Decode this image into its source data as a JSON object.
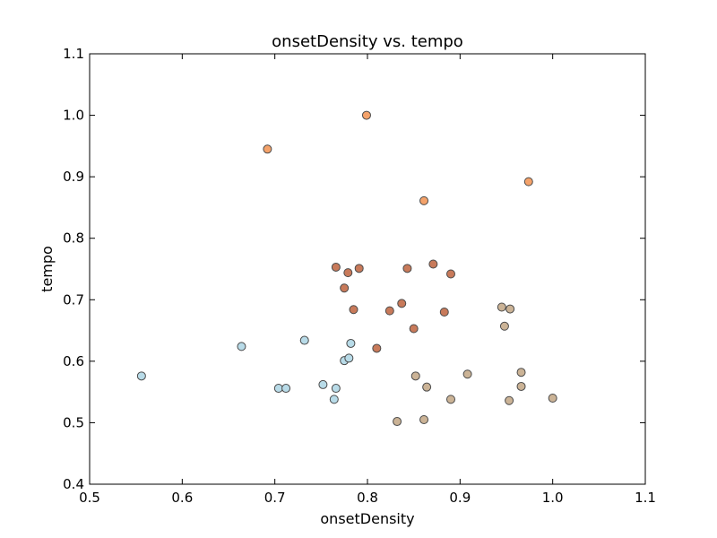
{
  "chart_data": {
    "type": "scatter",
    "title": "onsetDensity vs. tempo",
    "xlabel": "onsetDensity",
    "ylabel": "tempo",
    "xlim": [
      0.5,
      1.1
    ],
    "ylim": [
      0.4,
      1.1
    ],
    "xticks": [
      "0.5",
      "0.6",
      "0.7",
      "0.8",
      "0.9",
      "1.0",
      "1.1"
    ],
    "yticks": [
      "0.4",
      "0.5",
      "0.6",
      "0.7",
      "0.8",
      "0.9",
      "1.0",
      "1.1"
    ],
    "grid": false,
    "series": [
      {
        "color": "#b8dbe8",
        "points": [
          {
            "x": 0.556,
            "y": 0.576
          },
          {
            "x": 0.664,
            "y": 0.624
          },
          {
            "x": 0.704,
            "y": 0.556
          },
          {
            "x": 0.712,
            "y": 0.556
          },
          {
            "x": 0.732,
            "y": 0.634
          },
          {
            "x": 0.752,
            "y": 0.562
          },
          {
            "x": 0.764,
            "y": 0.538
          },
          {
            "x": 0.766,
            "y": 0.556
          },
          {
            "x": 0.775,
            "y": 0.601
          },
          {
            "x": 0.78,
            "y": 0.605
          },
          {
            "x": 0.782,
            "y": 0.629
          }
        ]
      },
      {
        "color": "#c87a5a",
        "points": [
          {
            "x": 0.766,
            "y": 0.753
          },
          {
            "x": 0.775,
            "y": 0.719
          },
          {
            "x": 0.779,
            "y": 0.744
          },
          {
            "x": 0.785,
            "y": 0.684
          },
          {
            "x": 0.791,
            "y": 0.751
          },
          {
            "x": 0.81,
            "y": 0.621
          },
          {
            "x": 0.824,
            "y": 0.682
          },
          {
            "x": 0.837,
            "y": 0.694
          },
          {
            "x": 0.843,
            "y": 0.751
          },
          {
            "x": 0.85,
            "y": 0.653
          },
          {
            "x": 0.871,
            "y": 0.758
          },
          {
            "x": 0.883,
            "y": 0.68
          },
          {
            "x": 0.89,
            "y": 0.742
          }
        ]
      },
      {
        "color": "#cbb396",
        "points": [
          {
            "x": 0.832,
            "y": 0.502
          },
          {
            "x": 0.852,
            "y": 0.576
          },
          {
            "x": 0.861,
            "y": 0.505
          },
          {
            "x": 0.864,
            "y": 0.558
          },
          {
            "x": 0.89,
            "y": 0.538
          },
          {
            "x": 0.908,
            "y": 0.579
          },
          {
            "x": 0.945,
            "y": 0.688
          },
          {
            "x": 0.948,
            "y": 0.657
          },
          {
            "x": 0.953,
            "y": 0.536
          },
          {
            "x": 0.954,
            "y": 0.685
          },
          {
            "x": 0.966,
            "y": 0.582
          },
          {
            "x": 0.966,
            "y": 0.559
          },
          {
            "x": 1.0,
            "y": 0.54
          }
        ]
      },
      {
        "color": "#f4a26a",
        "points": [
          {
            "x": 0.692,
            "y": 0.945
          },
          {
            "x": 0.799,
            "y": 1.0
          },
          {
            "x": 0.861,
            "y": 0.861
          },
          {
            "x": 0.974,
            "y": 0.892
          }
        ]
      }
    ]
  }
}
